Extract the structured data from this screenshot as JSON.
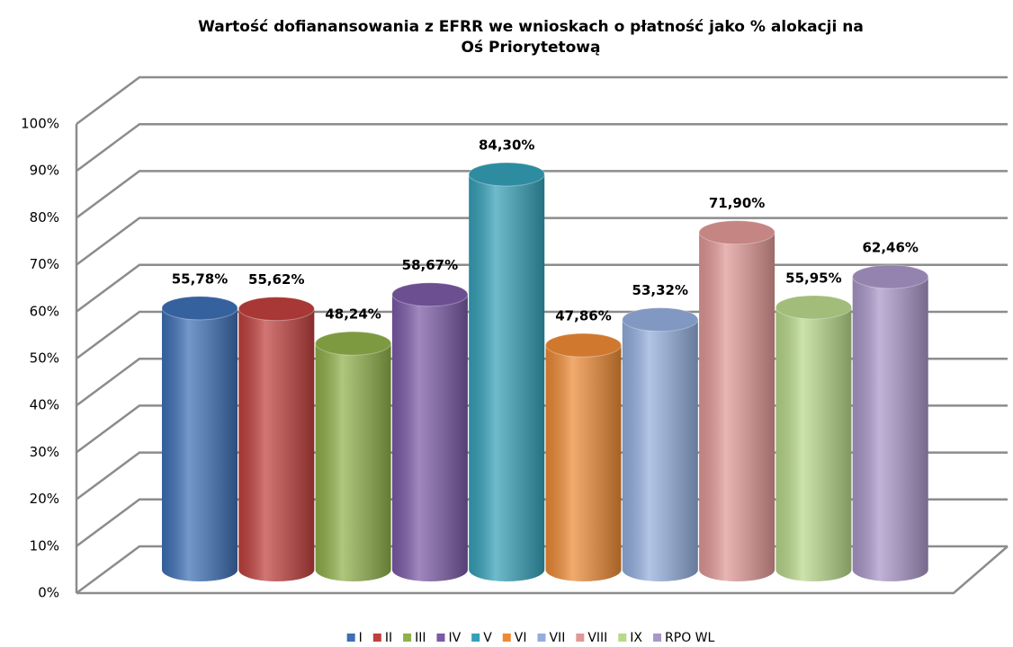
{
  "chart_data": {
    "type": "bar3d",
    "title_lines": [
      "Wartość dofianansowania z EFRR we wnioskach o płatność jako % alokacji na",
      "Oś Priorytetową"
    ],
    "categories": [
      "I",
      "II",
      "III",
      "IV",
      "V",
      "VI",
      "VII",
      "VIII",
      "IX",
      "RPO WL"
    ],
    "values": [
      55.78,
      55.62,
      48.24,
      58.67,
      84.3,
      47.86,
      53.32,
      71.9,
      55.95,
      62.46
    ],
    "value_labels": [
      "55,78%",
      "55,62%",
      "48,24%",
      "58,67%",
      "84,30%",
      "47,86%",
      "53,32%",
      "71,90%",
      "55,95%",
      "62,46%"
    ],
    "colors": [
      "#3d6fb5",
      "#c0403d",
      "#8fb04a",
      "#7b5aa6",
      "#35a0b8",
      "#ed8a35",
      "#93aedd",
      "#e09896",
      "#b8d88a",
      "#a996c8"
    ],
    "ylim": [
      0,
      100
    ],
    "yticks": [
      {
        "value": 0,
        "label": "0%"
      },
      {
        "value": 10,
        "label": "10%"
      },
      {
        "value": 20,
        "label": "20%"
      },
      {
        "value": 30,
        "label": "30%"
      },
      {
        "value": 40,
        "label": "40%"
      },
      {
        "value": 50,
        "label": "50%"
      },
      {
        "value": 60,
        "label": "60%"
      },
      {
        "value": 70,
        "label": "70%"
      },
      {
        "value": 80,
        "label": "80%"
      },
      {
        "value": 90,
        "label": "90%"
      },
      {
        "value": 100,
        "label": "100%"
      }
    ],
    "grid": true,
    "legend": "bottom"
  }
}
